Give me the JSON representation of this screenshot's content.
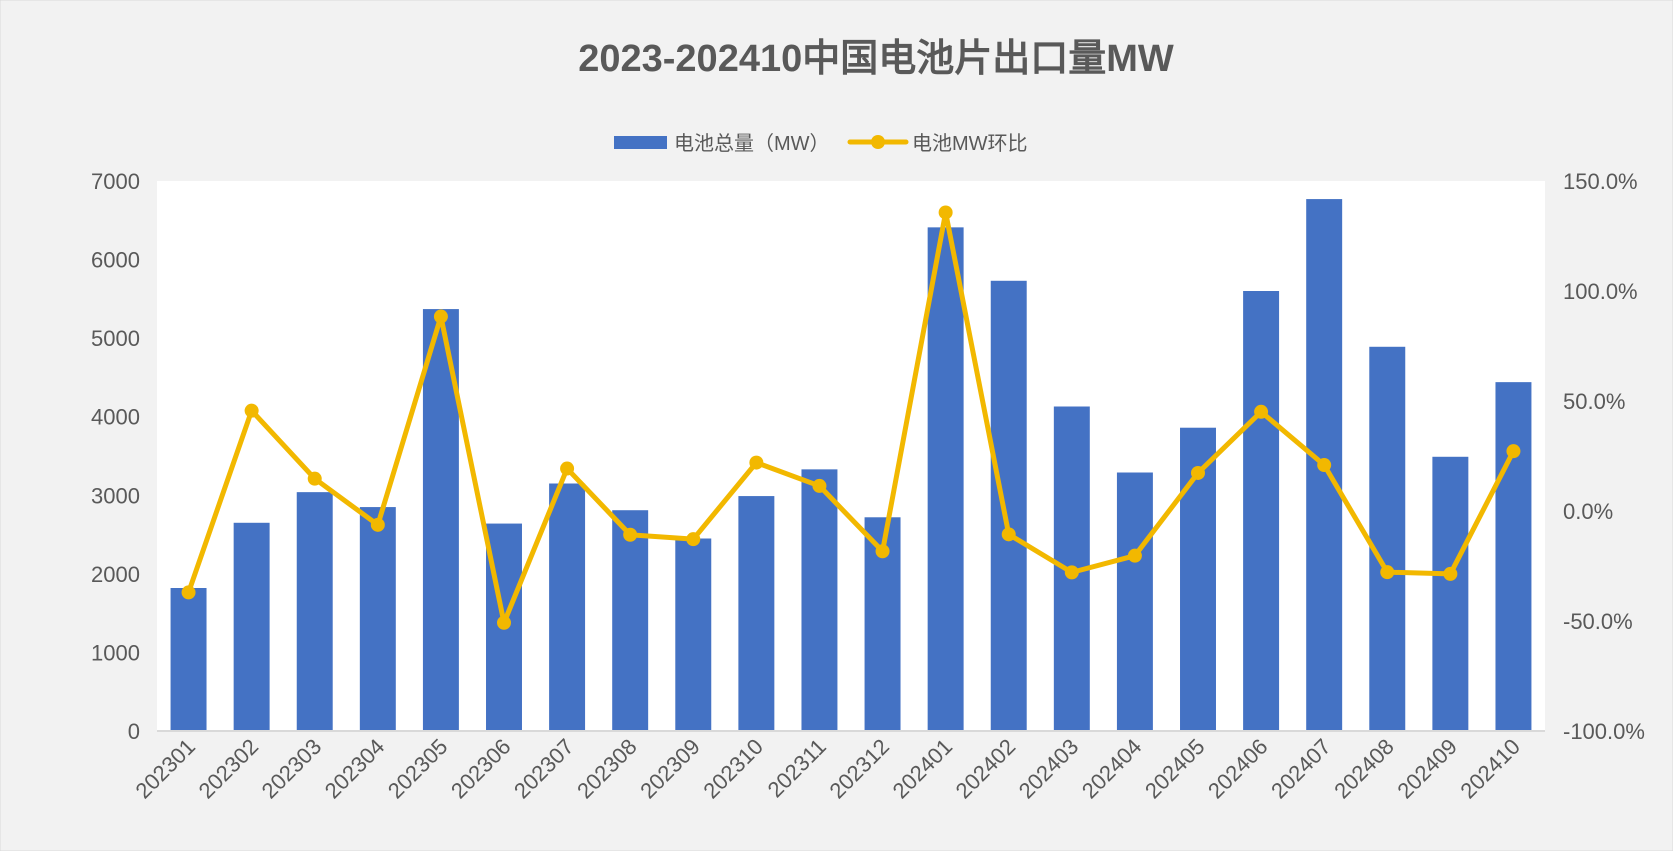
{
  "chart_data": {
    "type": "bar+line",
    "title": "2023-202410中国电池片出口量MW",
    "categories": [
      "202301",
      "202302",
      "202303",
      "202304",
      "202305",
      "202306",
      "202307",
      "202308",
      "202309",
      "202310",
      "202311",
      "202312",
      "202401",
      "202402",
      "202403",
      "202404",
      "202405",
      "202406",
      "202407",
      "202408",
      "202409",
      "202410"
    ],
    "series": [
      {
        "name": "电池总量（MW）",
        "type": "bar",
        "axis": "left",
        "color": "#4472c4",
        "values": [
          1820,
          2650,
          3040,
          2850,
          5370,
          2640,
          3150,
          2810,
          2450,
          2990,
          3330,
          2720,
          6410,
          5730,
          4130,
          3290,
          3860,
          5600,
          6770,
          4890,
          3490,
          4440
        ]
      },
      {
        "name": "电池MW环比",
        "type": "line",
        "axis": "right",
        "color": "#f2b800",
        "values": [
          -37.0,
          45.6,
          14.7,
          -6.3,
          88.4,
          -50.8,
          19.3,
          -10.8,
          -12.8,
          22.0,
          11.4,
          -18.3,
          135.7,
          -10.6,
          -27.9,
          -20.3,
          17.3,
          45.1,
          20.9,
          -27.8,
          -28.6,
          27.2
        ]
      }
    ],
    "left_axis": {
      "ylim": [
        0,
        7000
      ],
      "ticks": [
        "0",
        "1000",
        "2000",
        "3000",
        "4000",
        "5000",
        "6000",
        "7000"
      ]
    },
    "right_axis": {
      "ylim": [
        -100,
        150
      ],
      "ticks": [
        "-100.0%",
        "-50.0%",
        "0.0%",
        "50.0%",
        "100.0%",
        "150.0%"
      ]
    },
    "legend": "top",
    "grid": false
  }
}
